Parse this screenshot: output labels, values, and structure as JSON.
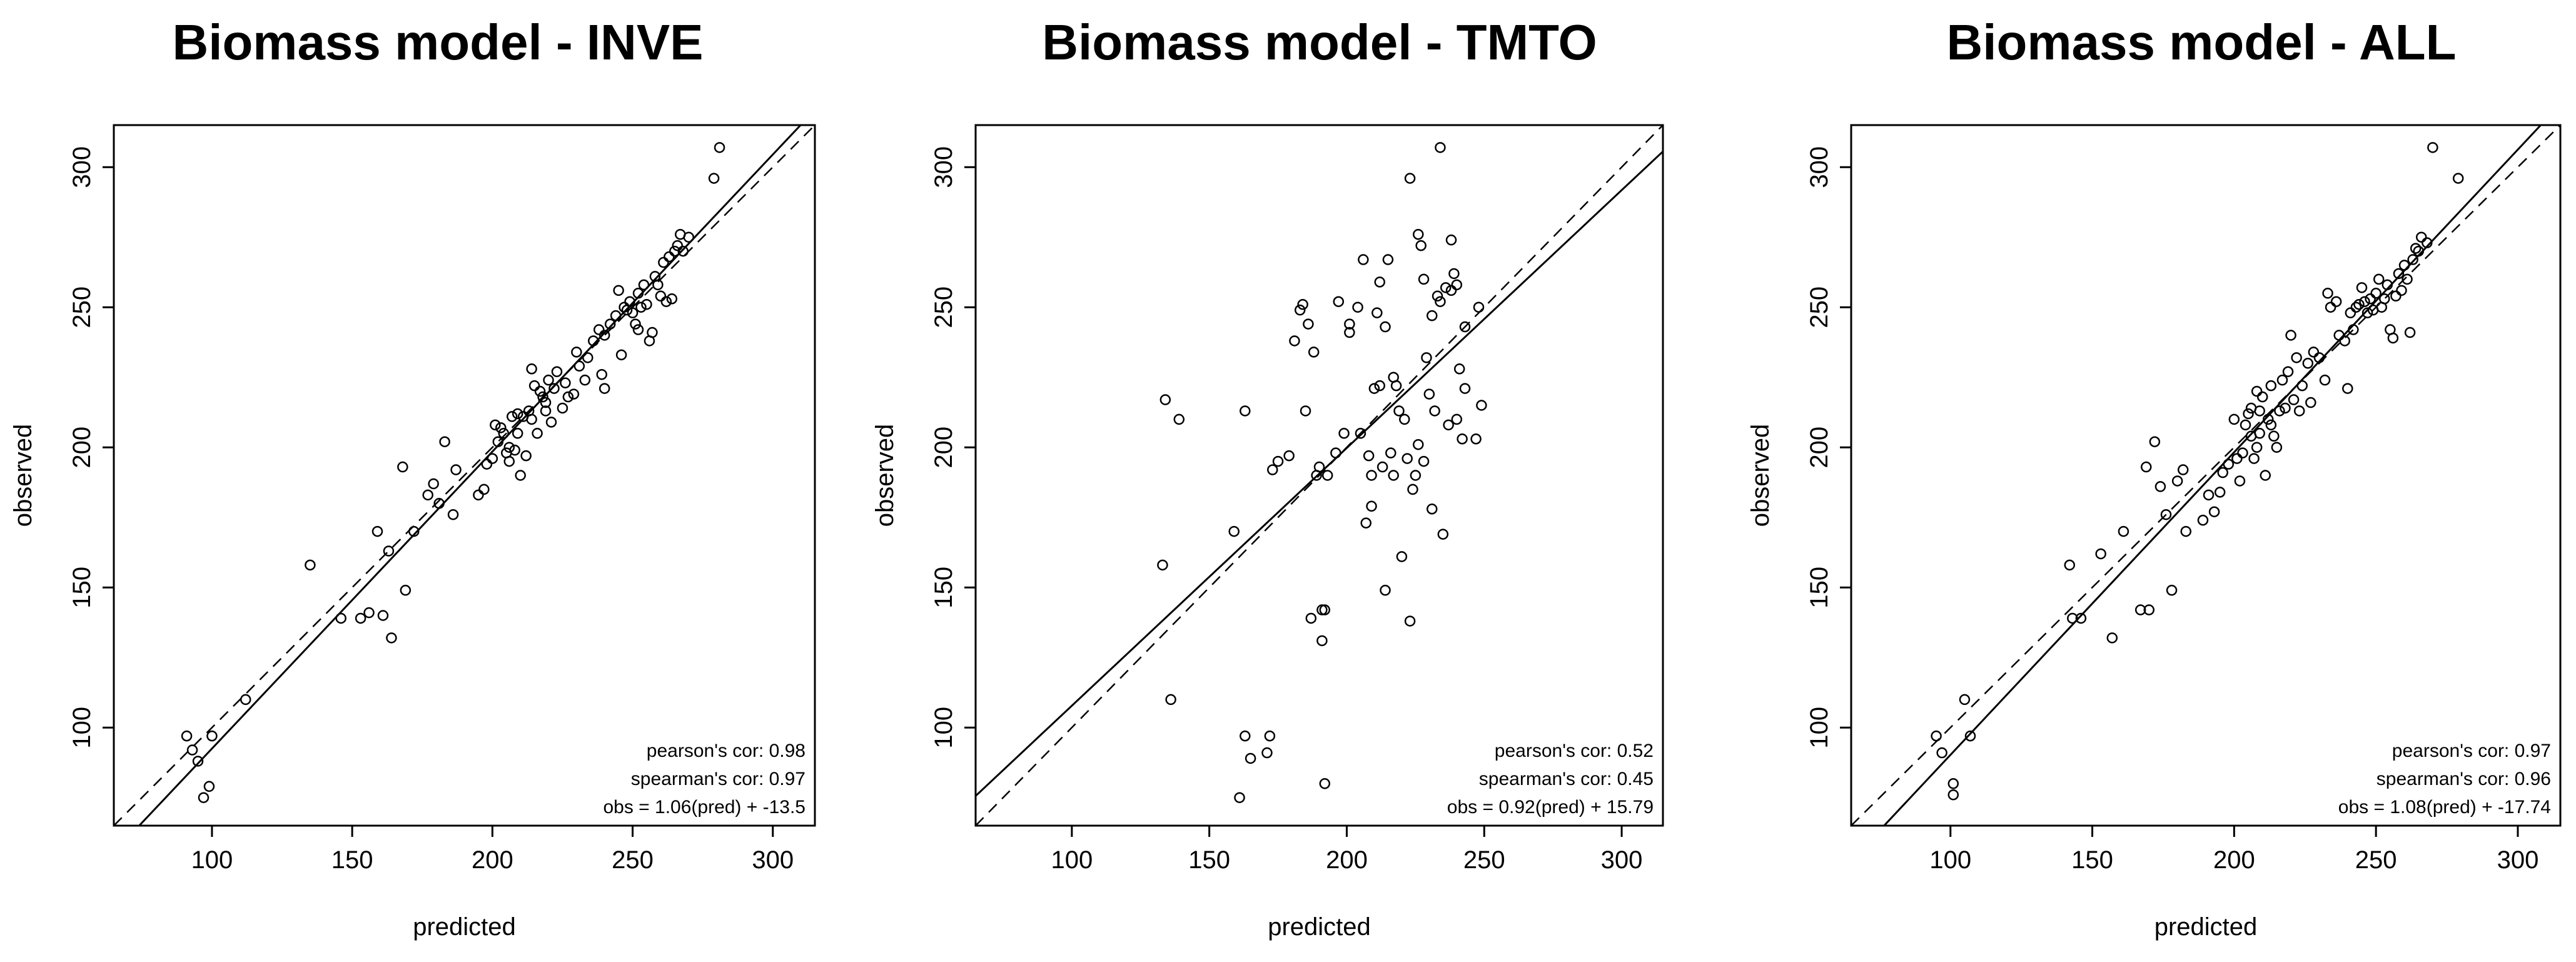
{
  "chart_data": [
    {
      "type": "scatter",
      "title": "Biomass model - INVE",
      "xlabel": "predicted",
      "ylabel": "observed",
      "xlim": [
        65,
        315
      ],
      "ylim": [
        65,
        315
      ],
      "xticks": [
        100,
        150,
        200,
        250,
        300
      ],
      "yticks": [
        100,
        150,
        200,
        250,
        300
      ],
      "stats": [
        "pearson's cor: 0.98",
        "spearman's cor: 0.97",
        "obs = 1.06(pred) + -13.5"
      ],
      "fit": {
        "slope": 1.06,
        "intercept": -13.5
      },
      "identity_line": true,
      "points": [
        [
          91,
          97
        ],
        [
          93,
          92
        ],
        [
          95,
          88
        ],
        [
          97,
          75
        ],
        [
          99,
          79
        ],
        [
          100,
          97
        ],
        [
          112,
          110
        ],
        [
          135,
          158
        ],
        [
          146,
          139
        ],
        [
          153,
          139
        ],
        [
          156,
          141
        ],
        [
          159,
          170
        ],
        [
          161,
          140
        ],
        [
          163,
          163
        ],
        [
          164,
          132
        ],
        [
          168,
          193
        ],
        [
          169,
          149
        ],
        [
          172,
          170
        ],
        [
          177,
          183
        ],
        [
          179,
          187
        ],
        [
          181,
          180
        ],
        [
          183,
          202
        ],
        [
          186,
          176
        ],
        [
          187,
          192
        ],
        [
          195,
          183
        ],
        [
          197,
          185
        ],
        [
          198,
          194
        ],
        [
          200,
          196
        ],
        [
          201,
          208
        ],
        [
          202,
          202
        ],
        [
          203,
          207
        ],
        [
          204,
          205
        ],
        [
          205,
          198
        ],
        [
          206,
          195
        ],
        [
          206,
          200
        ],
        [
          207,
          211
        ],
        [
          208,
          199
        ],
        [
          209,
          212
        ],
        [
          209,
          205
        ],
        [
          210,
          190
        ],
        [
          211,
          211
        ],
        [
          212,
          197
        ],
        [
          213,
          213
        ],
        [
          214,
          210
        ],
        [
          214,
          228
        ],
        [
          215,
          222
        ],
        [
          216,
          205
        ],
        [
          217,
          220
        ],
        [
          218,
          218
        ],
        [
          219,
          216
        ],
        [
          219,
          213
        ],
        [
          220,
          224
        ],
        [
          221,
          209
        ],
        [
          222,
          221
        ],
        [
          223,
          227
        ],
        [
          225,
          214
        ],
        [
          226,
          223
        ],
        [
          227,
          218
        ],
        [
          229,
          219
        ],
        [
          230,
          234
        ],
        [
          231,
          229
        ],
        [
          233,
          224
        ],
        [
          234,
          232
        ],
        [
          236,
          238
        ],
        [
          238,
          242
        ],
        [
          239,
          226
        ],
        [
          240,
          221
        ],
        [
          240,
          240
        ],
        [
          242,
          244
        ],
        [
          244,
          247
        ],
        [
          245,
          256
        ],
        [
          246,
          233
        ],
        [
          247,
          250
        ],
        [
          248,
          249
        ],
        [
          249,
          252
        ],
        [
          250,
          248
        ],
        [
          251,
          244
        ],
        [
          252,
          255
        ],
        [
          252,
          242
        ],
        [
          253,
          250
        ],
        [
          254,
          258
        ],
        [
          255,
          251
        ],
        [
          256,
          238
        ],
        [
          257,
          241
        ],
        [
          258,
          261
        ],
        [
          259,
          258
        ],
        [
          260,
          254
        ],
        [
          261,
          266
        ],
        [
          262,
          252
        ],
        [
          263,
          268
        ],
        [
          264,
          253
        ],
        [
          265,
          270
        ],
        [
          266,
          272
        ],
        [
          267,
          276
        ],
        [
          268,
          270
        ],
        [
          270,
          275
        ],
        [
          279,
          296
        ],
        [
          281,
          307
        ]
      ]
    },
    {
      "type": "scatter",
      "title": "Biomass model - TMTO",
      "xlabel": "predicted",
      "ylabel": "observed",
      "xlim": [
        65,
        315
      ],
      "ylim": [
        65,
        315
      ],
      "xticks": [
        100,
        150,
        200,
        250,
        300
      ],
      "yticks": [
        100,
        150,
        200,
        250,
        300
      ],
      "stats": [
        "pearson's cor: 0.52",
        "spearman's cor: 0.45",
        "obs = 0.92(pred) + 15.79"
      ],
      "fit": {
        "slope": 0.92,
        "intercept": 15.79
      },
      "identity_line": true,
      "points": [
        [
          133,
          158
        ],
        [
          134,
          217
        ],
        [
          136,
          110
        ],
        [
          139,
          210
        ],
        [
          159,
          170
        ],
        [
          161,
          75
        ],
        [
          163,
          97
        ],
        [
          163,
          213
        ],
        [
          165,
          89
        ],
        [
          171,
          91
        ],
        [
          172,
          97
        ],
        [
          173,
          192
        ],
        [
          175,
          195
        ],
        [
          179,
          197
        ],
        [
          181,
          238
        ],
        [
          183,
          249
        ],
        [
          184,
          251
        ],
        [
          185,
          213
        ],
        [
          186,
          244
        ],
        [
          187,
          139
        ],
        [
          188,
          234
        ],
        [
          189,
          190
        ],
        [
          190,
          193
        ],
        [
          191,
          142
        ],
        [
          191,
          131
        ],
        [
          192,
          80
        ],
        [
          192,
          142
        ],
        [
          193,
          190
        ],
        [
          196,
          198
        ],
        [
          197,
          252
        ],
        [
          199,
          205
        ],
        [
          201,
          241
        ],
        [
          201,
          244
        ],
        [
          204,
          250
        ],
        [
          205,
          205
        ],
        [
          206,
          267
        ],
        [
          207,
          173
        ],
        [
          208,
          197
        ],
        [
          209,
          179
        ],
        [
          209,
          190
        ],
        [
          210,
          221
        ],
        [
          211,
          248
        ],
        [
          212,
          222
        ],
        [
          212,
          259
        ],
        [
          213,
          193
        ],
        [
          214,
          149
        ],
        [
          214,
          243
        ],
        [
          215,
          267
        ],
        [
          216,
          198
        ],
        [
          217,
          190
        ],
        [
          217,
          225
        ],
        [
          218,
          222
        ],
        [
          219,
          213
        ],
        [
          220,
          161
        ],
        [
          221,
          210
        ],
        [
          222,
          196
        ],
        [
          223,
          138
        ],
        [
          223,
          296
        ],
        [
          224,
          185
        ],
        [
          225,
          190
        ],
        [
          226,
          276
        ],
        [
          226,
          201
        ],
        [
          227,
          272
        ],
        [
          228,
          260
        ],
        [
          228,
          195
        ],
        [
          229,
          232
        ],
        [
          230,
          219
        ],
        [
          231,
          247
        ],
        [
          231,
          178
        ],
        [
          232,
          213
        ],
        [
          233,
          254
        ],
        [
          234,
          252
        ],
        [
          234,
          307
        ],
        [
          235,
          169
        ],
        [
          236,
          257
        ],
        [
          237,
          208
        ],
        [
          238,
          256
        ],
        [
          238,
          274
        ],
        [
          239,
          262
        ],
        [
          240,
          210
        ],
        [
          240,
          258
        ],
        [
          241,
          228
        ],
        [
          242,
          203
        ],
        [
          243,
          243
        ],
        [
          243,
          221
        ],
        [
          247,
          203
        ],
        [
          248,
          250
        ],
        [
          249,
          215
        ]
      ]
    },
    {
      "type": "scatter",
      "title": "Biomass model - ALL",
      "xlabel": "predicted",
      "ylabel": "observed",
      "xlim": [
        65,
        315
      ],
      "ylim": [
        65,
        315
      ],
      "xticks": [
        100,
        150,
        200,
        250,
        300
      ],
      "yticks": [
        100,
        150,
        200,
        250,
        300
      ],
      "stats": [
        "pearson's cor: 0.97",
        "spearman's cor: 0.96",
        "obs = 1.08(pred) + -17.74"
      ],
      "fit": {
        "slope": 1.08,
        "intercept": -17.74
      },
      "identity_line": true,
      "points": [
        [
          95,
          97
        ],
        [
          97,
          91
        ],
        [
          101,
          76
        ],
        [
          101,
          80
        ],
        [
          105,
          110
        ],
        [
          107,
          97
        ],
        [
          142,
          158
        ],
        [
          143,
          139
        ],
        [
          146,
          139
        ],
        [
          153,
          162
        ],
        [
          157,
          132
        ],
        [
          161,
          170
        ],
        [
          167,
          142
        ],
        [
          169,
          193
        ],
        [
          170,
          142
        ],
        [
          172,
          202
        ],
        [
          174,
          186
        ],
        [
          176,
          176
        ],
        [
          178,
          149
        ],
        [
          180,
          188
        ],
        [
          182,
          192
        ],
        [
          183,
          170
        ],
        [
          189,
          174
        ],
        [
          191,
          183
        ],
        [
          193,
          177
        ],
        [
          195,
          184
        ],
        [
          196,
          191
        ],
        [
          198,
          194
        ],
        [
          200,
          210
        ],
        [
          201,
          196
        ],
        [
          202,
          188
        ],
        [
          203,
          198
        ],
        [
          204,
          208
        ],
        [
          205,
          212
        ],
        [
          206,
          204
        ],
        [
          206,
          214
        ],
        [
          207,
          196
        ],
        [
          208,
          220
        ],
        [
          208,
          200
        ],
        [
          209,
          205
        ],
        [
          209,
          213
        ],
        [
          210,
          218
        ],
        [
          211,
          190
        ],
        [
          212,
          210
        ],
        [
          213,
          222
        ],
        [
          213,
          208
        ],
        [
          214,
          204
        ],
        [
          215,
          200
        ],
        [
          216,
          213
        ],
        [
          217,
          224
        ],
        [
          218,
          214
        ],
        [
          219,
          227
        ],
        [
          220,
          240
        ],
        [
          221,
          217
        ],
        [
          222,
          232
        ],
        [
          223,
          213
        ],
        [
          224,
          222
        ],
        [
          226,
          230
        ],
        [
          227,
          216
        ],
        [
          228,
          234
        ],
        [
          230,
          232
        ],
        [
          232,
          224
        ],
        [
          233,
          255
        ],
        [
          234,
          250
        ],
        [
          236,
          252
        ],
        [
          237,
          240
        ],
        [
          239,
          238
        ],
        [
          240,
          221
        ],
        [
          241,
          248
        ],
        [
          242,
          242
        ],
        [
          243,
          250
        ],
        [
          244,
          251
        ],
        [
          245,
          257
        ],
        [
          246,
          252
        ],
        [
          247,
          248
        ],
        [
          248,
          253
        ],
        [
          249,
          249
        ],
        [
          250,
          255
        ],
        [
          251,
          260
        ],
        [
          252,
          250
        ],
        [
          253,
          253
        ],
        [
          254,
          258
        ],
        [
          255,
          242
        ],
        [
          256,
          239
        ],
        [
          257,
          254
        ],
        [
          258,
          262
        ],
        [
          259,
          256
        ],
        [
          260,
          265
        ],
        [
          261,
          260
        ],
        [
          262,
          241
        ],
        [
          263,
          267
        ],
        [
          264,
          271
        ],
        [
          265,
          270
        ],
        [
          266,
          275
        ],
        [
          268,
          273
        ],
        [
          270,
          307
        ],
        [
          279,
          296
        ]
      ]
    }
  ]
}
